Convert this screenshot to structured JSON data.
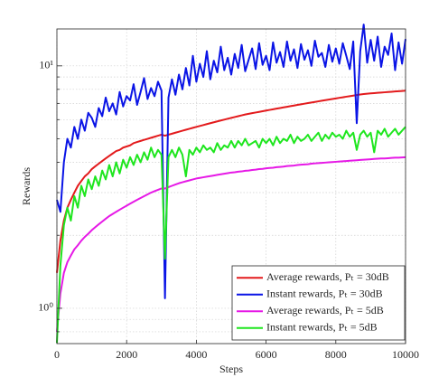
{
  "chart_data": {
    "type": "line",
    "xlabel": "Steps",
    "ylabel": "Rewards",
    "yscale": "log",
    "grid": true,
    "legend": "lower right",
    "xlim": [
      0,
      10000
    ],
    "xticks": [
      0,
      2000,
      4000,
      6000,
      8000,
      10000
    ],
    "ylim": [
      0.715,
      14.2
    ],
    "yticks": [
      {
        "value": 1,
        "label": "10⁰"
      },
      {
        "value": 10,
        "label": "10¹"
      }
    ],
    "y_minor_ticks": [
      0.8,
      0.9,
      2,
      3,
      4,
      5,
      6,
      7,
      8,
      9
    ],
    "x": [
      0,
      100,
      200,
      300,
      400,
      500,
      600,
      700,
      800,
      900,
      1000,
      1100,
      1200,
      1300,
      1400,
      1500,
      1600,
      1700,
      1800,
      1900,
      2000,
      2100,
      2200,
      2300,
      2400,
      2500,
      2600,
      2700,
      2800,
      2900,
      3000,
      3100,
      3200,
      3300,
      3400,
      3500,
      3600,
      3700,
      3800,
      3900,
      4000,
      4100,
      4200,
      4300,
      4400,
      4500,
      4600,
      4700,
      4800,
      4900,
      5000,
      5100,
      5200,
      5300,
      5400,
      5500,
      5600,
      5700,
      5800,
      5900,
      6000,
      6100,
      6200,
      6300,
      6400,
      6500,
      6600,
      6700,
      6800,
      6900,
      7000,
      7100,
      7200,
      7300,
      7400,
      7500,
      7600,
      7700,
      7800,
      7900,
      8000,
      8100,
      8200,
      8300,
      8400,
      8500,
      8600,
      8700,
      8800,
      8900,
      9000,
      9100,
      9200,
      9300,
      9400,
      9500,
      9600,
      9700,
      9800,
      9900,
      10000
    ],
    "series": [
      {
        "name": "Average rewards, Pₜ = 30dB",
        "color": "#e31a1c",
        "values": [
          1.4,
          1.9,
          2.3,
          2.6,
          2.8,
          3.0,
          3.2,
          3.35,
          3.5,
          3.6,
          3.75,
          3.85,
          3.95,
          4.05,
          4.15,
          4.25,
          4.35,
          4.45,
          4.5,
          4.6,
          4.65,
          4.7,
          4.8,
          4.85,
          4.9,
          4.95,
          5.0,
          5.05,
          5.1,
          5.15,
          5.2,
          5.15,
          5.2,
          5.25,
          5.3,
          5.35,
          5.4,
          5.45,
          5.5,
          5.55,
          5.6,
          5.65,
          5.7,
          5.75,
          5.8,
          5.85,
          5.9,
          5.95,
          6.0,
          6.05,
          6.1,
          6.15,
          6.2,
          6.25,
          6.3,
          6.34,
          6.38,
          6.42,
          6.46,
          6.5,
          6.54,
          6.58,
          6.62,
          6.66,
          6.7,
          6.74,
          6.78,
          6.82,
          6.86,
          6.9,
          6.94,
          6.98,
          7.02,
          7.06,
          7.1,
          7.14,
          7.18,
          7.22,
          7.26,
          7.3,
          7.34,
          7.38,
          7.42,
          7.46,
          7.5,
          7.54,
          7.58,
          7.62,
          7.65,
          7.68,
          7.7,
          7.72,
          7.74,
          7.76,
          7.78,
          7.8,
          7.82,
          7.84,
          7.86,
          7.88,
          7.9
        ]
      },
      {
        "name": "Instant rewards, Pₜ = 30dB",
        "color": "#0a14e6",
        "values": [
          2.8,
          2.5,
          4.0,
          5.0,
          4.6,
          5.6,
          5.0,
          6.0,
          5.4,
          6.4,
          6.1,
          5.6,
          6.7,
          6.2,
          7.4,
          6.5,
          7.0,
          6.3,
          7.8,
          6.8,
          7.5,
          7.2,
          8.4,
          6.9,
          7.8,
          8.9,
          7.3,
          8.1,
          7.5,
          8.6,
          7.9,
          1.1,
          7.4,
          8.8,
          7.6,
          9.2,
          8.0,
          9.8,
          8.3,
          11.0,
          8.6,
          10.2,
          9.0,
          11.5,
          8.8,
          10.5,
          9.4,
          12.0,
          9.6,
          10.8,
          9.2,
          11.2,
          9.8,
          12.2,
          9.5,
          10.6,
          11.8,
          9.7,
          12.4,
          10.1,
          11.0,
          9.6,
          12.5,
          10.3,
          11.4,
          9.9,
          12.6,
          10.5,
          11.7,
          9.8,
          12.3,
          10.6,
          11.6,
          10.0,
          12.7,
          10.9,
          11.3,
          9.9,
          12.2,
          10.4,
          11.8,
          10.2,
          12.4,
          11.0,
          9.7,
          12.6,
          5.8,
          11.5,
          14.8,
          10.3,
          12.8,
          10.5,
          13.2,
          9.9,
          12.0,
          11.1,
          13.6,
          9.6,
          12.5,
          10.2,
          12.9
        ]
      },
      {
        "name": "Average rewards, Pₜ = 5dB",
        "color": "#e619e6",
        "values": [
          0.8,
          1.15,
          1.4,
          1.55,
          1.65,
          1.75,
          1.82,
          1.9,
          1.97,
          2.03,
          2.1,
          2.16,
          2.22,
          2.28,
          2.34,
          2.4,
          2.45,
          2.5,
          2.55,
          2.6,
          2.65,
          2.7,
          2.75,
          2.8,
          2.85,
          2.9,
          2.95,
          3.0,
          3.04,
          3.08,
          3.12,
          3.12,
          3.16,
          3.2,
          3.24,
          3.28,
          3.31,
          3.34,
          3.37,
          3.4,
          3.43,
          3.45,
          3.47,
          3.49,
          3.51,
          3.53,
          3.55,
          3.57,
          3.59,
          3.61,
          3.63,
          3.64,
          3.66,
          3.67,
          3.69,
          3.7,
          3.72,
          3.73,
          3.75,
          3.76,
          3.78,
          3.79,
          3.8,
          3.82,
          3.83,
          3.84,
          3.86,
          3.87,
          3.88,
          3.9,
          3.91,
          3.92,
          3.93,
          3.95,
          3.96,
          3.97,
          3.98,
          3.99,
          4.0,
          4.01,
          4.02,
          4.03,
          4.04,
          4.05,
          4.06,
          4.07,
          4.08,
          4.09,
          4.1,
          4.11,
          4.12,
          4.13,
          4.14,
          4.15,
          4.15,
          4.16,
          4.17,
          4.18,
          4.18,
          4.19,
          4.2
        ]
      },
      {
        "name": "Instant rewards, Pₜ = 5dB",
        "color": "#1ee61e",
        "values": [
          0.72,
          1.5,
          2.2,
          2.6,
          2.3,
          2.9,
          2.6,
          3.2,
          2.9,
          3.4,
          3.1,
          3.5,
          3.2,
          3.7,
          3.4,
          3.9,
          3.5,
          4.0,
          3.6,
          4.1,
          3.8,
          4.2,
          3.9,
          4.3,
          4.0,
          4.4,
          4.1,
          4.6,
          4.2,
          4.5,
          4.3,
          1.6,
          4.2,
          4.5,
          4.2,
          4.6,
          4.3,
          3.5,
          4.5,
          4.3,
          4.6,
          4.4,
          4.7,
          4.5,
          4.6,
          4.4,
          4.8,
          4.5,
          4.7,
          4.6,
          4.9,
          4.6,
          4.9,
          4.7,
          5.0,
          4.7,
          4.8,
          4.9,
          4.6,
          5.0,
          4.8,
          5.0,
          4.7,
          5.1,
          4.8,
          5.0,
          4.9,
          5.2,
          4.8,
          5.1,
          4.9,
          5.0,
          5.2,
          4.9,
          5.1,
          5.3,
          4.9,
          5.2,
          5.0,
          5.3,
          5.1,
          5.2,
          5.0,
          5.4,
          5.1,
          5.3,
          4.5,
          5.2,
          5.4,
          5.1,
          5.3,
          4.4,
          5.4,
          5.2,
          5.5,
          5.1,
          5.3,
          5.5,
          5.2,
          5.4,
          5.6
        ]
      }
    ]
  }
}
